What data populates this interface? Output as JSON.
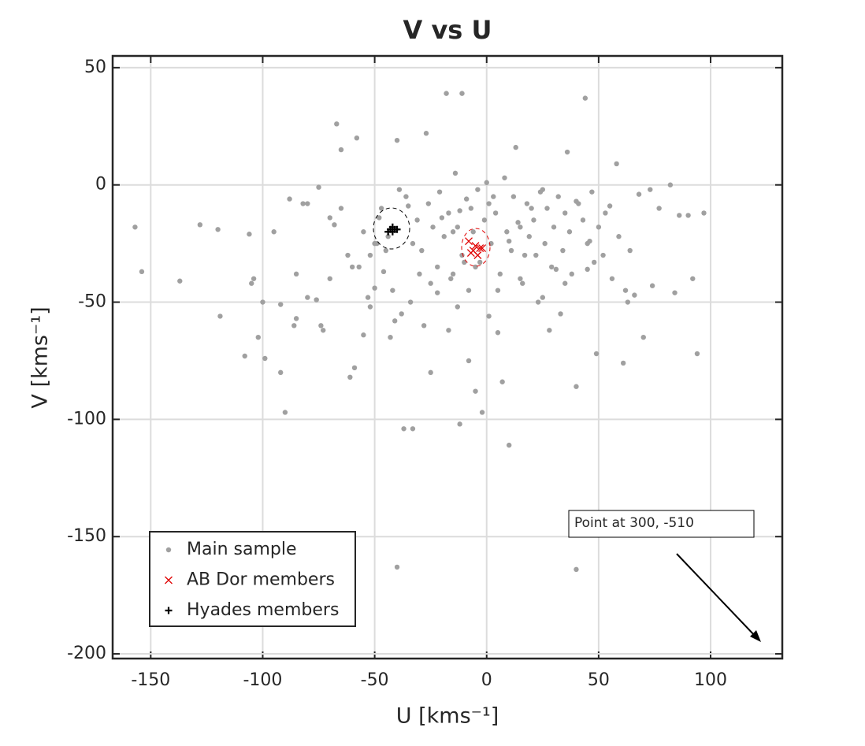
{
  "chart_data": {
    "type": "scatter",
    "title": "V vs U",
    "x_label": "U [kms⁻¹]",
    "y_label": "V [kms⁻¹]",
    "xlim": [
      -167,
      132
    ],
    "ylim": [
      -202,
      55
    ],
    "xticks": [
      -150,
      -100,
      -50,
      0,
      50,
      100
    ],
    "yticks": [
      -200,
      -150,
      -100,
      -50,
      0,
      50
    ],
    "grid": true,
    "legend": "lower left",
    "annotation": "Point at 300, -510",
    "series": [
      {
        "name": "Main sample",
        "color": "#a0a0a0",
        "marker": "dot",
        "x": [
          -157,
          -154,
          -137,
          -128,
          -120,
          -119,
          -106,
          -105,
          -104,
          -102,
          -99,
          -108,
          -92,
          -92,
          -90,
          -88,
          -85,
          -85,
          -82,
          -80,
          -76,
          -75,
          -74,
          -73,
          -70,
          -68,
          -67,
          -65,
          -61,
          -59,
          -58,
          -55,
          -52,
          -50,
          -50,
          -48,
          -46,
          -45,
          -43,
          -42,
          -41,
          -40,
          -40,
          -39,
          -37,
          -35,
          -33,
          -30,
          -28,
          -27,
          -25,
          -22,
          -20,
          -18,
          -17,
          -15,
          -13,
          -12,
          -12,
          -11,
          -10,
          -8,
          -5,
          -2,
          0,
          1,
          3,
          5,
          7,
          10,
          10,
          13,
          14,
          17,
          20,
          23,
          25,
          28,
          31,
          33,
          36,
          40,
          40,
          40,
          44,
          46,
          49,
          52,
          55,
          58,
          61,
          63,
          64,
          66,
          68,
          70,
          73,
          74,
          77,
          82,
          84,
          86,
          90,
          92,
          94,
          97,
          -60,
          -55,
          -52,
          -47,
          -44,
          -36,
          -33,
          -31,
          -29,
          -26,
          -24,
          -22,
          -21,
          -19,
          -17,
          -16,
          -14,
          -13,
          -11,
          -9,
          -8,
          -7,
          -6,
          -4,
          -3,
          -1,
          1,
          2,
          4,
          6,
          8,
          9,
          11,
          12,
          15,
          16,
          18,
          19,
          21,
          22,
          24,
          26,
          27,
          29,
          30,
          32,
          34,
          35,
          37,
          38,
          41,
          43,
          45,
          47,
          48,
          50,
          53,
          56,
          59,
          62,
          -65,
          -62,
          -57,
          -53,
          -49,
          -38,
          -34,
          -25,
          -15,
          -5,
          5,
          15,
          25,
          35,
          45,
          -70,
          -80,
          -95,
          -100,
          -86
        ],
        "values": [
          -18,
          -37,
          -41,
          -17,
          -19,
          -56,
          -21,
          -42,
          -40,
          -65,
          -74,
          -73,
          -51,
          -80,
          -97,
          -6,
          -57,
          -38,
          -8,
          -48,
          -49,
          -1,
          -60,
          -62,
          -14,
          -17,
          26,
          15,
          -82,
          -78,
          20,
          -64,
          -52,
          -44,
          -25,
          -14,
          -37,
          -28,
          -65,
          -45,
          -58,
          19,
          -163,
          -2,
          -104,
          -9,
          -104,
          -38,
          -60,
          22,
          -80,
          -46,
          -14,
          39,
          -62,
          -20,
          -52,
          -102,
          -11,
          39,
          -33,
          -75,
          -88,
          -97,
          1,
          -56,
          -5,
          -63,
          -84,
          -111,
          -24,
          16,
          -16,
          -30,
          -10,
          -50,
          -2,
          -62,
          -36,
          -55,
          14,
          -7,
          -164,
          -86,
          37,
          -24,
          -72,
          -30,
          -9,
          9,
          -76,
          -50,
          -28,
          -47,
          -4,
          -65,
          -2,
          -43,
          -10,
          0,
          -46,
          -13,
          -13,
          -40,
          -72,
          -12,
          -35,
          -20,
          -30,
          -10,
          -22,
          -5,
          -25,
          -15,
          -28,
          -8,
          -18,
          -35,
          -3,
          -22,
          -12,
          -40,
          5,
          -18,
          -30,
          -6,
          -45,
          -10,
          -20,
          -2,
          -33,
          -15,
          -8,
          -25,
          -12,
          -38,
          3,
          -20,
          -28,
          -5,
          -18,
          -42,
          -8,
          -22,
          -15,
          -30,
          -3,
          -25,
          -10,
          -35,
          -18,
          -5,
          -28,
          -12,
          -20,
          -38,
          -8,
          -15,
          -25,
          -3,
          -33,
          -18,
          -12,
          -40,
          -22,
          -45,
          -10,
          -30,
          -35,
          -48,
          -25,
          -55,
          -50,
          -42,
          -38,
          -35,
          -45,
          -40,
          -48,
          -42,
          -36,
          -40,
          -8,
          -20,
          -50,
          -60
        ]
      },
      {
        "name": "AB Dor members",
        "color": "#e00000",
        "marker": "x",
        "x": [
          -8,
          -6,
          -5,
          -4,
          -3,
          -2,
          -7
        ],
        "values": [
          -24,
          -28,
          -26,
          -30,
          -27,
          -27,
          -29
        ]
      },
      {
        "name": "Hyades members",
        "color": "#000000",
        "marker": "plus",
        "x": [
          -43,
          -42,
          -41,
          -42,
          -40,
          -44
        ],
        "values": [
          -19,
          -20,
          -19,
          -18,
          -19,
          -20
        ]
      }
    ]
  }
}
